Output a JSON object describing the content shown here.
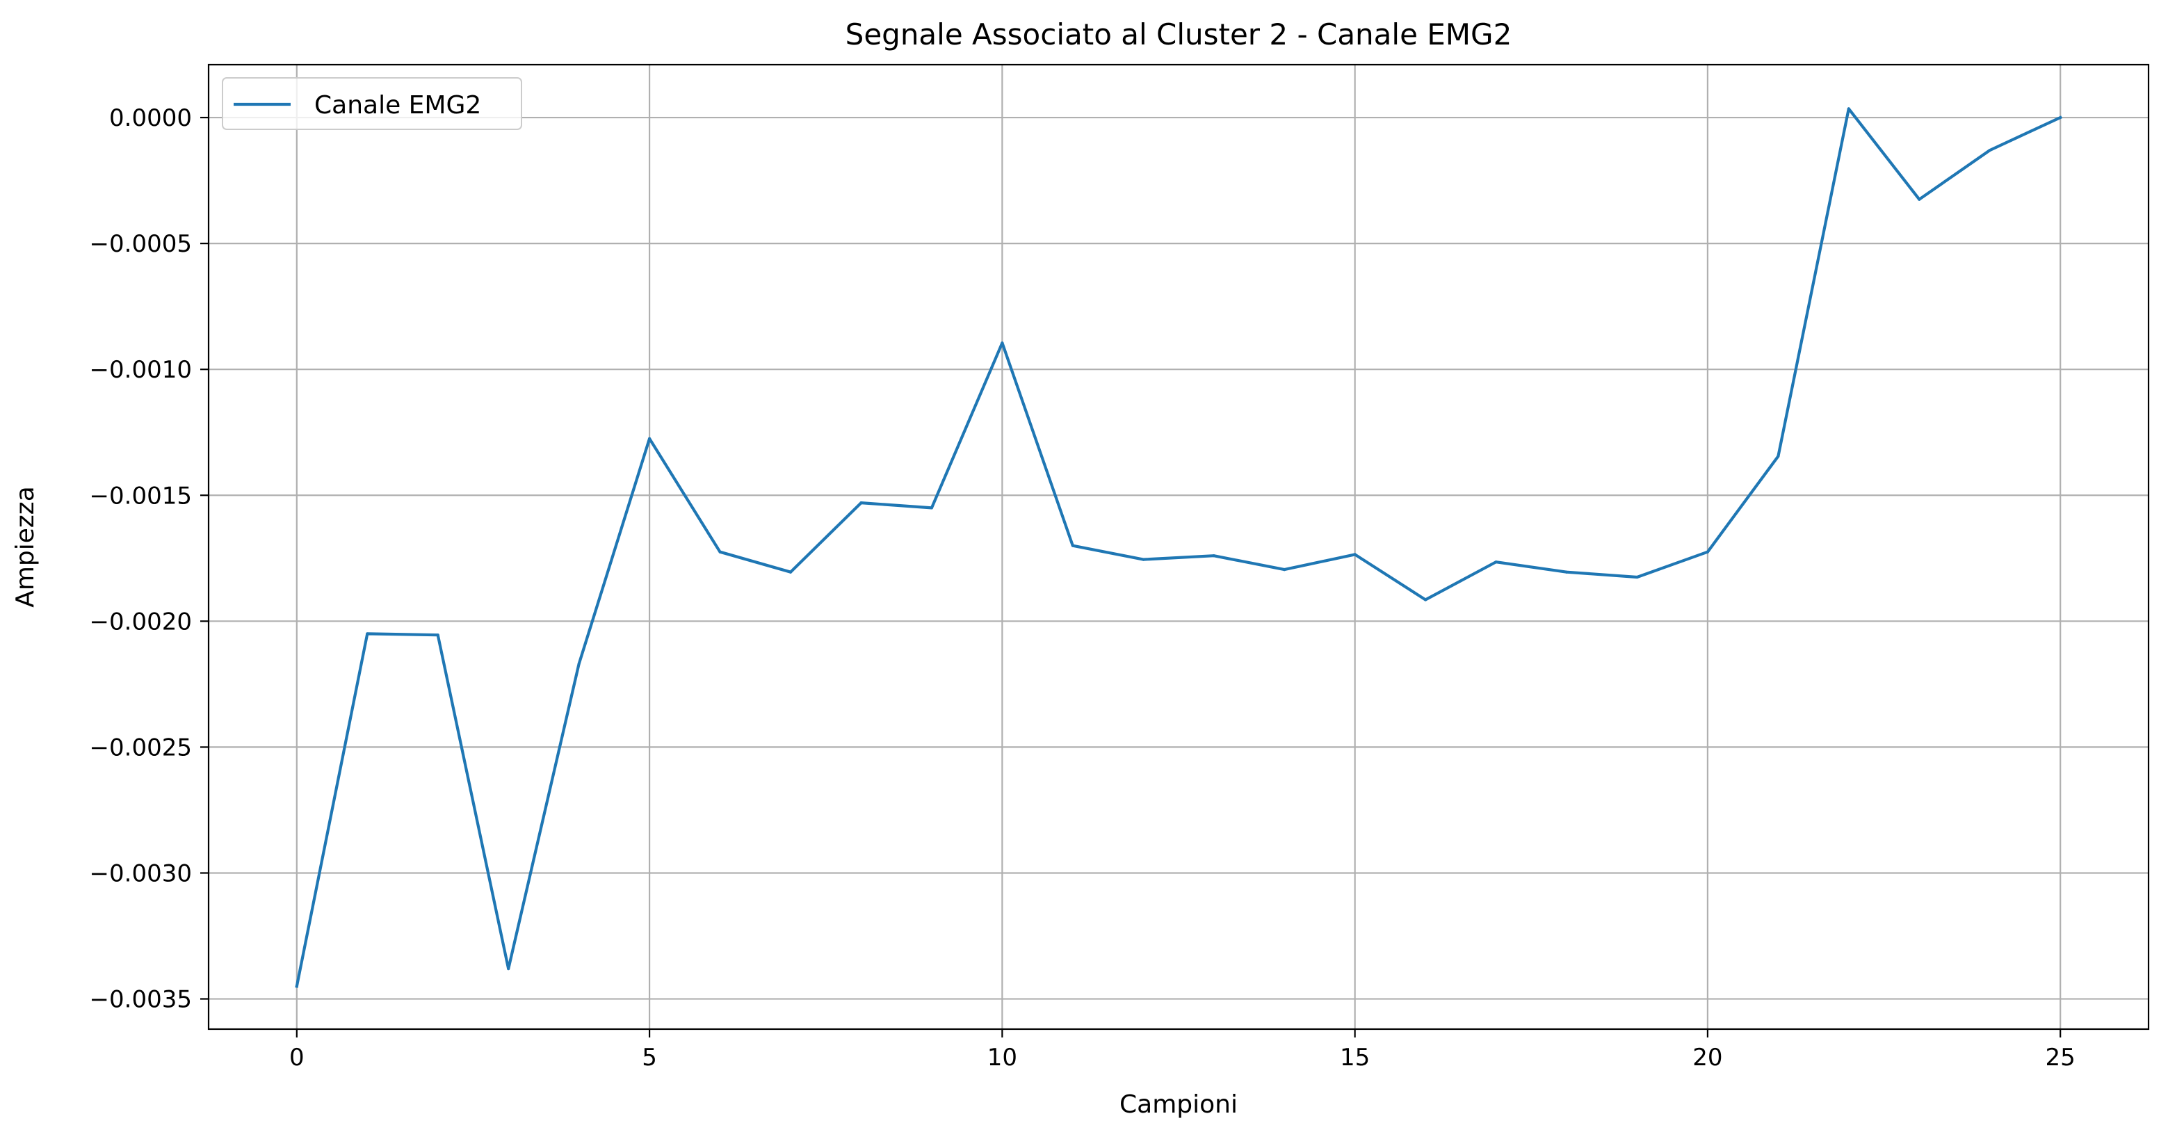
{
  "chart_data": {
    "type": "line",
    "title": "Segnale Associato al Cluster 2 - Canale EMG2",
    "xlabel": "Campioni",
    "ylabel": "Ampiezza",
    "xlim": [
      -1.25,
      26.25
    ],
    "ylim": [
      -0.00362,
      0.00021
    ],
    "xticks": [
      0,
      5,
      10,
      15,
      20,
      25
    ],
    "xtick_labels": [
      "0",
      "5",
      "10",
      "15",
      "20",
      "25"
    ],
    "yticks": [
      0.0,
      -0.0005,
      -0.001,
      -0.0015,
      -0.002,
      -0.0025,
      -0.003,
      -0.0035
    ],
    "ytick_labels": [
      "0.0000",
      "−0.0005",
      "−0.0010",
      "−0.0015",
      "−0.0020",
      "−0.0025",
      "−0.0030",
      "−0.0035"
    ],
    "grid": true,
    "legend_position": "top-left",
    "series": [
      {
        "name": "Canale EMG2",
        "color": "#1f77b4",
        "x": [
          0,
          1,
          2,
          3,
          4,
          5,
          6,
          7,
          8,
          9,
          10,
          11,
          12,
          13,
          14,
          15,
          16,
          17,
          18,
          19,
          20,
          21,
          22,
          23,
          24,
          25
        ],
        "y": [
          -0.00345,
          -0.00205,
          -0.002055,
          -0.00338,
          -0.00217,
          -0.001275,
          -0.001725,
          -0.001805,
          -0.00153,
          -0.00155,
          -0.000895,
          -0.0017,
          -0.001755,
          -0.00174,
          -0.001795,
          -0.001735,
          -0.001915,
          -0.001765,
          -0.001805,
          -0.001825,
          -0.001725,
          -0.001345,
          3.5e-05,
          -0.000325,
          -0.00013,
          0.0
        ]
      }
    ]
  }
}
